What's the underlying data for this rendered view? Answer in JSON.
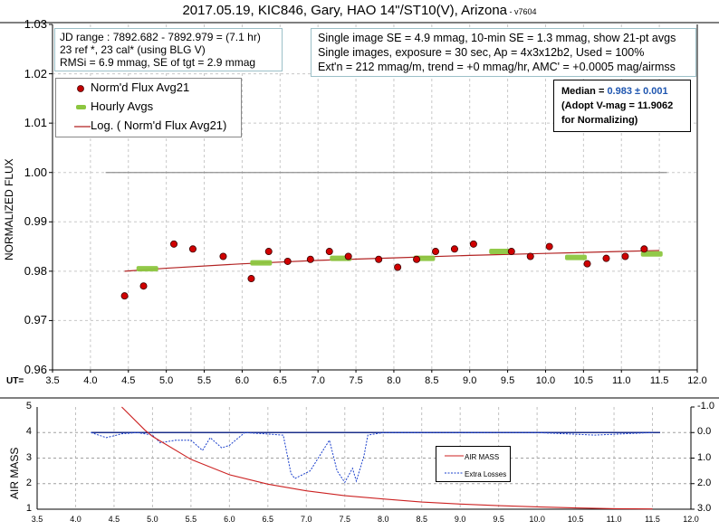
{
  "header": {
    "title": "2017.05.19, KIC846, Gary, HAO 14\"/ST10(V), Arizona",
    "version": " - v7604"
  },
  "info_box_left": {
    "line1": "JD range : 7892.682  - 7892.979  = (7.1 hr)",
    "line2": "23 ref *, 23 cal* (using BLG V)",
    "line3": "RMSi = 6.9 mmag, SE of tgt = 2.9 mmag"
  },
  "info_box_right": {
    "line1": "Single image SE = 4.9 mmag, 10-min SE = 1.3 mmag, show 21-pt avgs",
    "line2": "Single images, exposure = 30 sec, Ap = 4x3x12b2, Used = 100%",
    "line3": "Ext'n = 212 mmag/m, trend = +0 mmag/hr, AMC' = +0.0005 mag/airmss"
  },
  "median_box": {
    "label": "Median = ",
    "value": "0.983 ± 0.001",
    "line2": "(Adopt V-mag = 11.9062",
    "line3": " for Normalizing)"
  },
  "legend_top": {
    "items": [
      {
        "label": "Norm'd Flux Avg21",
        "color": "#cc0000"
      },
      {
        "label": "Hourly Avgs",
        "color": "#8cc63f"
      },
      {
        "label": "Log. ( Norm'd Flux Avg21)",
        "color": "#b22222"
      }
    ]
  },
  "legend_bottom": {
    "items": [
      {
        "label": "AIR MASS",
        "color": "#cc2222"
      },
      {
        "label": "Extra Losses",
        "color": "#1a3fcc"
      }
    ]
  },
  "axis_labels": {
    "ut_prefix": "UT=",
    "top_ylabel": "NORMALIZED FLUX",
    "bottom_ylabel": "AIR MASS"
  },
  "chart_data": [
    {
      "type": "scatter",
      "title": "2017.05.19, KIC846, Gary, HAO 14\"/ST10(V), Arizona - v7604",
      "xlabel": "UT",
      "ylabel": "NORMALIZED FLUX",
      "xlim": [
        3.5,
        12.0
      ],
      "ylim": [
        0.96,
        1.03
      ],
      "x_ticks": [
        "3.5",
        "4.0",
        "4.5",
        "5.0",
        "5.5",
        "6.0",
        "6.5",
        "7.0",
        "7.5",
        "8.0",
        "8.5",
        "9.0",
        "9.5",
        "10.0",
        "10.5",
        "11.0",
        "11.5",
        "12.0"
      ],
      "y_ticks": [
        "0.96",
        "0.97",
        "0.98",
        "0.99",
        "1.00",
        "1.01",
        "1.02",
        "1.03"
      ],
      "grid": true,
      "reference_line": 1.0,
      "legend_position": "upper-left",
      "series": [
        {
          "name": "Norm'd Flux Avg21",
          "x": [
            4.45,
            4.7,
            5.1,
            5.35,
            5.75,
            6.12,
            6.35,
            6.6,
            6.9,
            7.15,
            7.4,
            7.8,
            8.05,
            8.3,
            8.55,
            8.8,
            9.05,
            9.55,
            9.8,
            10.05,
            10.55,
            10.8,
            11.05,
            11.3
          ],
          "y": [
            0.975,
            0.977,
            0.9855,
            0.9845,
            0.983,
            0.9785,
            0.984,
            0.982,
            0.9824,
            0.984,
            0.983,
            0.9824,
            0.9808,
            0.9824,
            0.984,
            0.9845,
            0.9855,
            0.984,
            0.983,
            0.985,
            0.9815,
            0.9826,
            0.983,
            0.9845
          ]
        },
        {
          "name": "Hourly Avgs",
          "x": [
            4.75,
            6.25,
            7.3,
            8.4,
            9.4,
            10.4,
            11.4
          ],
          "y": [
            0.9805,
            0.9817,
            0.9826,
            0.9826,
            0.984,
            0.9828,
            0.9835
          ]
        },
        {
          "name": "Log. ( Norm'd Flux Avg21)",
          "x": [
            4.45,
            5.0,
            6.0,
            7.0,
            8.0,
            9.0,
            10.0,
            11.0,
            11.5
          ],
          "y": [
            0.98,
            0.9806,
            0.9815,
            0.9822,
            0.9827,
            0.9832,
            0.9836,
            0.984,
            0.9842
          ]
        }
      ]
    },
    {
      "type": "line",
      "xlabel": "UT",
      "ylabel": "AIR MASS",
      "xlim": [
        3.5,
        12.0
      ],
      "ylim": [
        1,
        5
      ],
      "y2lim": [
        -1.0,
        3.0
      ],
      "x_ticks": [
        "3.5",
        "4.0",
        "4.5",
        "5.0",
        "5.5",
        "6.0",
        "6.5",
        "7.0",
        "7.5",
        "8.0",
        "8.5",
        "9.0",
        "9.5",
        "10.0",
        "10.5",
        "11.0",
        "11.5",
        "12.0"
      ],
      "y_ticks": [
        "1",
        "2",
        "3",
        "4",
        "5"
      ],
      "y2_ticks": [
        "-1.0",
        "0.0",
        "1.0",
        "2.0",
        "3.0"
      ],
      "grid": true,
      "legend_position": "center-right",
      "series": [
        {
          "name": "AIR MASS",
          "x": [
            4.6,
            4.9,
            5.0,
            5.5,
            6.0,
            6.5,
            7.0,
            7.5,
            8.0,
            8.5,
            9.0,
            9.5,
            10.0,
            10.5,
            11.0,
            11.5
          ],
          "y": [
            5.0,
            4.1,
            3.85,
            2.95,
            2.35,
            1.98,
            1.72,
            1.53,
            1.4,
            1.28,
            1.2,
            1.14,
            1.09,
            1.05,
            1.02,
            1.01
          ]
        },
        {
          "name": "Extra Losses",
          "axis": "right",
          "x": [
            4.2,
            4.4,
            4.6,
            4.8,
            5.0,
            5.1,
            5.3,
            5.5,
            5.65,
            5.75,
            5.9,
            6.0,
            6.2,
            6.7,
            6.8,
            6.85,
            7.05,
            7.3,
            7.4,
            7.5,
            7.6,
            7.65,
            7.75,
            7.8,
            8.0,
            9.0,
            10.0,
            10.75,
            11.5
          ],
          "y": [
            0.0,
            0.2,
            0.05,
            0.0,
            0.1,
            0.4,
            0.3,
            0.3,
            0.7,
            0.2,
            0.6,
            0.5,
            0.0,
            0.1,
            1.6,
            1.8,
            1.5,
            0.3,
            1.5,
            1.95,
            1.4,
            1.9,
            0.9,
            0.1,
            0.0,
            0.0,
            0.0,
            0.1,
            0.0
          ]
        }
      ]
    }
  ]
}
